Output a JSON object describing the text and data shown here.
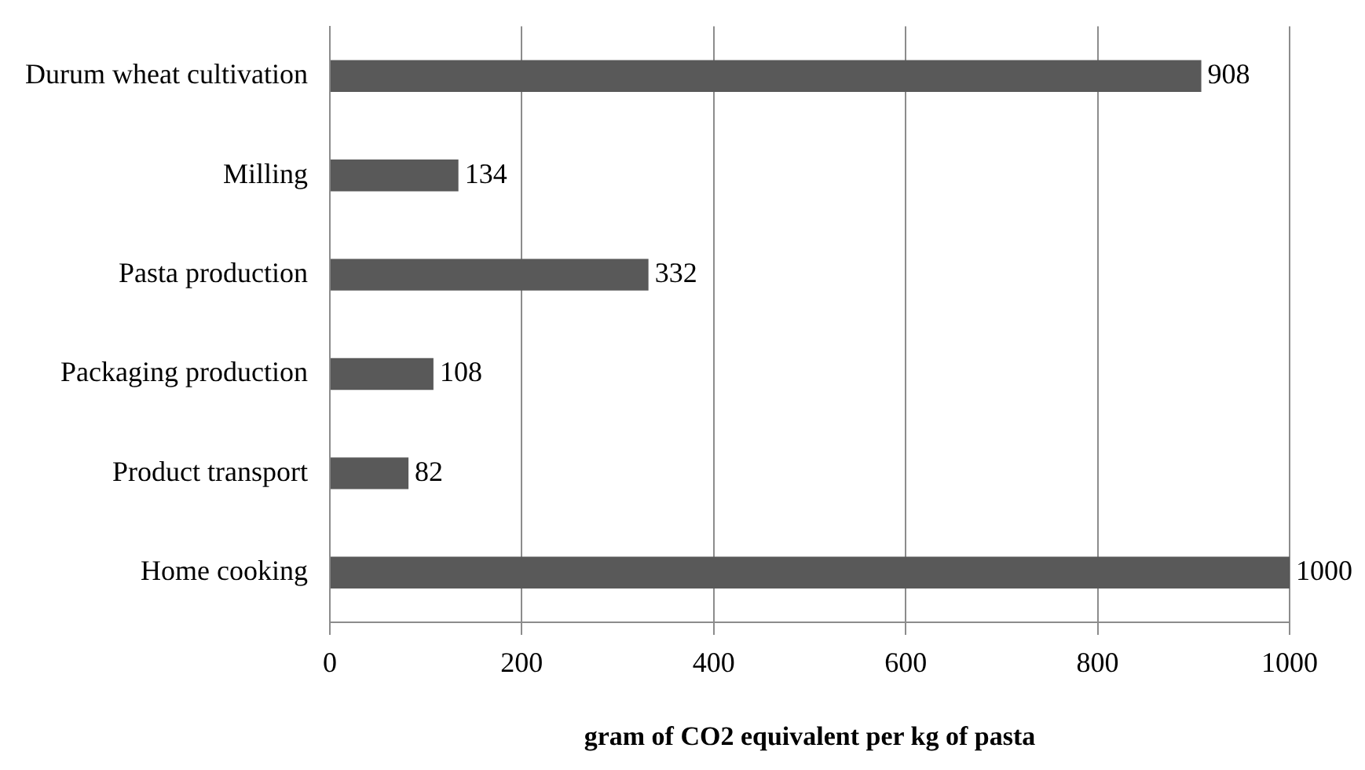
{
  "chart_data": {
    "type": "bar",
    "orientation": "horizontal",
    "categories": [
      "Durum wheat cultivation",
      "Milling",
      "Pasta production",
      "Packaging production",
      "Product transport",
      "Home cooking"
    ],
    "values": [
      908,
      134,
      332,
      108,
      82,
      1000
    ],
    "color": "#595959",
    "xlabel": "gram of CO2 equivalent per kg of pasta",
    "xlim": [
      0,
      1000
    ],
    "xticks": [
      0,
      200,
      400,
      600,
      800,
      1000
    ],
    "grid": "x",
    "data_labels": true,
    "legend": false
  }
}
